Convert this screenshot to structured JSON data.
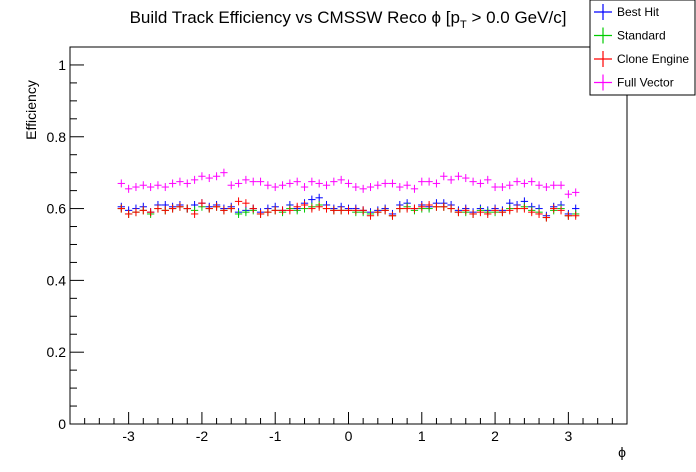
{
  "chart_data": {
    "type": "scatter",
    "title": {
      "main": "Build Track Efficiency vs CMSSW Reco ϕ [p",
      "sub": "T",
      "rest": " > 0.0 GeV/c]"
    },
    "xlabel": "ϕ",
    "ylabel": "Efficiency",
    "xlim": [
      -3.8,
      3.8
    ],
    "ylim": [
      0,
      1.05
    ],
    "x_ticks": [
      -3,
      -2,
      -1,
      0,
      1,
      2,
      3
    ],
    "y_ticks": [
      0,
      0.2,
      0.4,
      0.6,
      0.8,
      1
    ],
    "x_tick_labels": [
      "-3",
      "-2",
      "-1",
      "0",
      "1",
      "2",
      "3"
    ],
    "y_tick_labels": [
      "0",
      "0.2",
      "0.4",
      "0.6",
      "0.8",
      "1"
    ],
    "grid": false,
    "legend_position": "top-right",
    "x": [
      -3.1,
      -3.0,
      -2.9,
      -2.8,
      -2.7,
      -2.6,
      -2.5,
      -2.4,
      -2.3,
      -2.2,
      -2.1,
      -2.0,
      -1.9,
      -1.8,
      -1.7,
      -1.6,
      -1.5,
      -1.4,
      -1.3,
      -1.2,
      -1.1,
      -1.0,
      -0.9,
      -0.8,
      -0.7,
      -0.6,
      -0.5,
      -0.4,
      -0.3,
      -0.2,
      -0.1,
      0.0,
      0.1,
      0.2,
      0.3,
      0.4,
      0.5,
      0.6,
      0.7,
      0.8,
      0.9,
      1.0,
      1.1,
      1.2,
      1.3,
      1.4,
      1.5,
      1.6,
      1.7,
      1.8,
      1.9,
      2.0,
      2.1,
      2.2,
      2.3,
      2.4,
      2.5,
      2.6,
      2.7,
      2.8,
      2.9,
      3.0,
      3.1
    ],
    "series": [
      {
        "name": "Best Hit",
        "color": "#0000ff",
        "values": [
          0.605,
          0.595,
          0.6,
          0.605,
          0.59,
          0.61,
          0.61,
          0.605,
          0.61,
          0.6,
          0.61,
          0.615,
          0.605,
          0.61,
          0.6,
          0.605,
          0.59,
          0.595,
          0.6,
          0.59,
          0.6,
          0.605,
          0.595,
          0.61,
          0.6,
          0.615,
          0.625,
          0.63,
          0.61,
          0.6,
          0.605,
          0.6,
          0.6,
          0.595,
          0.59,
          0.595,
          0.6,
          0.585,
          0.61,
          0.615,
          0.6,
          0.61,
          0.605,
          0.615,
          0.615,
          0.61,
          0.595,
          0.6,
          0.59,
          0.6,
          0.595,
          0.6,
          0.595,
          0.615,
          0.61,
          0.62,
          0.605,
          0.6,
          0.58,
          0.605,
          0.61,
          0.585,
          0.6
        ]
      },
      {
        "name": "Standard",
        "color": "#00cc00",
        "values": [
          0.6,
          0.585,
          0.59,
          0.595,
          0.585,
          0.6,
          0.595,
          0.6,
          0.605,
          0.6,
          0.595,
          0.605,
          0.6,
          0.605,
          0.595,
          0.6,
          0.585,
          0.59,
          0.595,
          0.585,
          0.59,
          0.595,
          0.59,
          0.6,
          0.595,
          0.6,
          0.605,
          0.61,
          0.6,
          0.595,
          0.595,
          0.595,
          0.59,
          0.59,
          0.585,
          0.59,
          0.595,
          0.58,
          0.6,
          0.605,
          0.595,
          0.6,
          0.6,
          0.605,
          0.605,
          0.6,
          0.59,
          0.59,
          0.585,
          0.595,
          0.59,
          0.59,
          0.59,
          0.6,
          0.6,
          0.605,
          0.595,
          0.59,
          0.575,
          0.595,
          0.6,
          0.58,
          0.585
        ]
      },
      {
        "name": "Clone Engine",
        "color": "#ff0000",
        "values": [
          0.6,
          0.585,
          0.59,
          0.595,
          0.59,
          0.6,
          0.595,
          0.6,
          0.605,
          0.6,
          0.585,
          0.615,
          0.6,
          0.605,
          0.595,
          0.6,
          0.62,
          0.615,
          0.6,
          0.585,
          0.59,
          0.595,
          0.595,
          0.595,
          0.605,
          0.61,
          0.6,
          0.605,
          0.6,
          0.595,
          0.595,
          0.595,
          0.595,
          0.595,
          0.58,
          0.59,
          0.595,
          0.58,
          0.6,
          0.6,
          0.6,
          0.605,
          0.61,
          0.605,
          0.605,
          0.6,
          0.59,
          0.595,
          0.585,
          0.59,
          0.585,
          0.595,
          0.59,
          0.595,
          0.6,
          0.6,
          0.59,
          0.585,
          0.575,
          0.6,
          0.595,
          0.58,
          0.58
        ]
      },
      {
        "name": "Full Vector",
        "color": "#ff00ff",
        "values": [
          0.67,
          0.655,
          0.66,
          0.665,
          0.66,
          0.665,
          0.66,
          0.67,
          0.675,
          0.67,
          0.68,
          0.69,
          0.685,
          0.69,
          0.7,
          0.665,
          0.67,
          0.68,
          0.675,
          0.675,
          0.665,
          0.66,
          0.665,
          0.67,
          0.675,
          0.66,
          0.675,
          0.67,
          0.665,
          0.675,
          0.68,
          0.67,
          0.66,
          0.655,
          0.66,
          0.665,
          0.67,
          0.67,
          0.66,
          0.665,
          0.655,
          0.675,
          0.675,
          0.67,
          0.69,
          0.68,
          0.69,
          0.685,
          0.675,
          0.67,
          0.68,
          0.66,
          0.66,
          0.665,
          0.675,
          0.67,
          0.675,
          0.665,
          0.66,
          0.665,
          0.665,
          0.64,
          0.645
        ]
      }
    ]
  }
}
